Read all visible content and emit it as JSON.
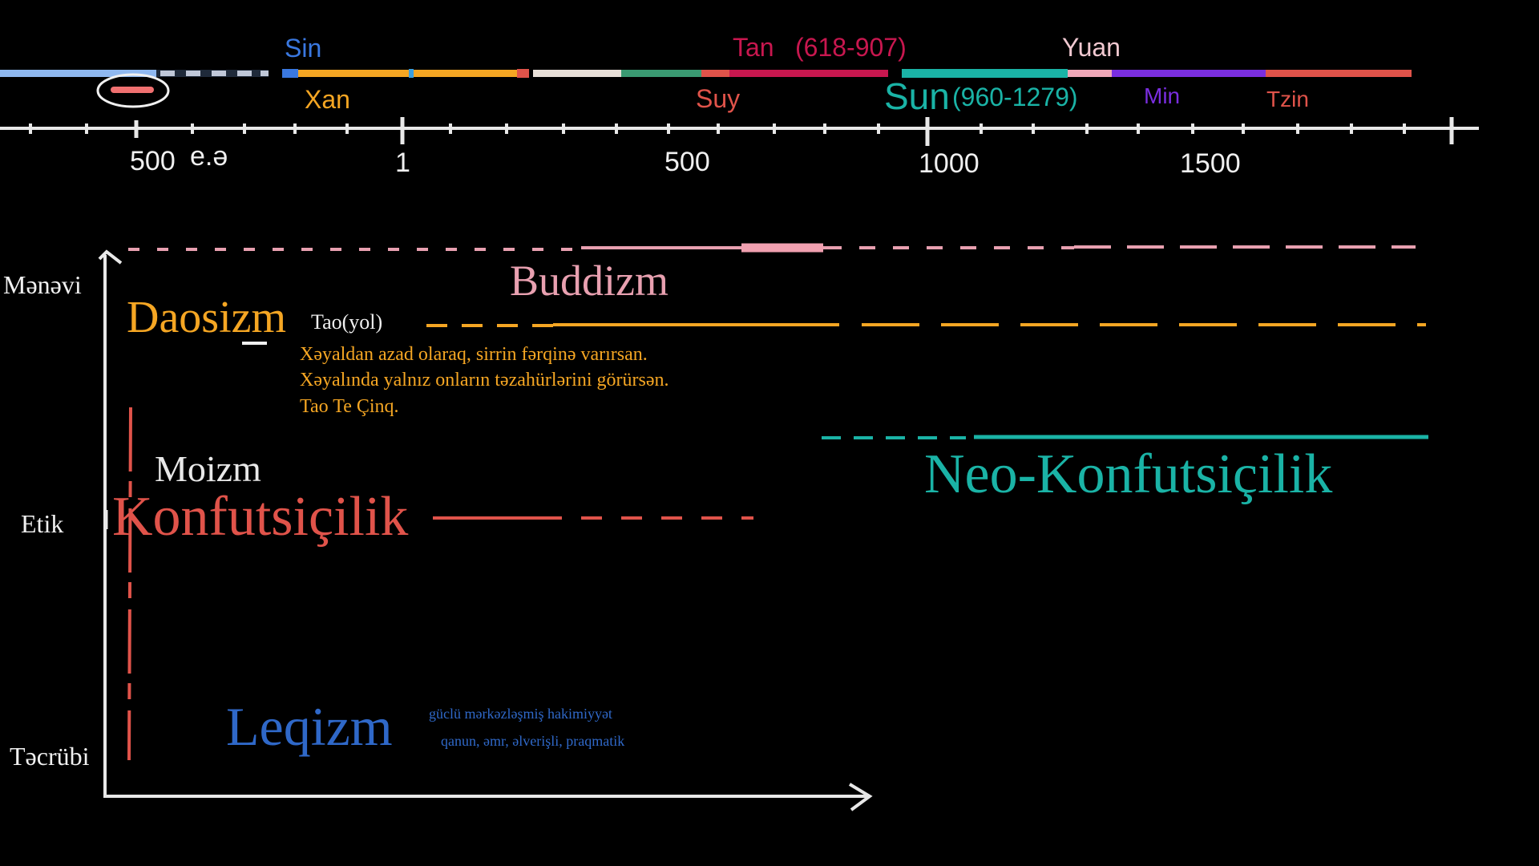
{
  "timeline": {
    "dynasties_top": [
      {
        "id": "sin",
        "label": "Sin",
        "color": "#3a78e0"
      },
      {
        "id": "tan",
        "label": "Tan",
        "color": "#c8174f"
      },
      {
        "id": "tan_years",
        "label": "(618-907)",
        "color": "#c8174f"
      },
      {
        "id": "yuan",
        "label": "Yuan",
        "color": "#f0c8d0"
      }
    ],
    "dynasties_bottom": [
      {
        "id": "xan",
        "label": "Xan",
        "color": "#f5a623"
      },
      {
        "id": "suy",
        "label": "Suy",
        "color": "#e0534a"
      },
      {
        "id": "sun",
        "label": "Sun",
        "color": "#1ab3a6"
      },
      {
        "id": "sun_years",
        "label": "(960-1279)",
        "color": "#1ab3a6"
      },
      {
        "id": "min",
        "label": "Min",
        "color": "#7a2ee0"
      },
      {
        "id": "tzin",
        "label": "Tzin",
        "color": "#e0534a"
      }
    ],
    "ticks": [
      {
        "id": "t500bc",
        "label": "500"
      },
      {
        "id": "era",
        "label": "e.ə"
      },
      {
        "id": "t1",
        "label": "1"
      },
      {
        "id": "t500",
        "label": "500"
      },
      {
        "id": "t1000",
        "label": "1000"
      },
      {
        "id": "t1500",
        "label": "1500"
      }
    ]
  },
  "axis_labels": {
    "top": "Mənəvi",
    "middle": "Etik",
    "bottom": "Təcrübi"
  },
  "schools": {
    "buddizm": {
      "label": "Buddizm",
      "color": "#e8a0b0"
    },
    "daosizm": {
      "label": "Daosizm",
      "color": "#f5a623"
    },
    "daosizm_sub": "Tao(yol)",
    "quote": [
      "Xəyaldan azad olaraq, sirrin fərqinə varırsan.",
      "Xəyalında yalnız onların təzahürlərini görürsən.",
      "Tao Te Çinq."
    ],
    "moizm": {
      "label": "Moizm",
      "color": "#e8e8e8"
    },
    "konfutsicilik": {
      "label": "Konfutsiçilik",
      "color": "#e0534a"
    },
    "neo": {
      "label": "Neo-Konfutsiçilik",
      "color": "#1ab3a6"
    },
    "leqizm": {
      "label": "Leqizm",
      "color": "#2f68c8"
    },
    "leqizm_notes": [
      "güclü mərkəzləşmiş hakimiyyət",
      "qanun, əmr, əlverişli, praqmatik"
    ]
  }
}
